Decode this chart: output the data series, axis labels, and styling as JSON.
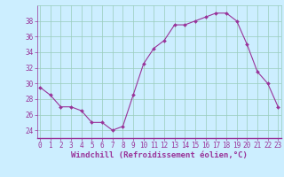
{
  "x": [
    0,
    1,
    2,
    3,
    4,
    5,
    6,
    7,
    8,
    9,
    10,
    11,
    12,
    13,
    14,
    15,
    16,
    17,
    18,
    19,
    20,
    21,
    22,
    23
  ],
  "y": [
    29.5,
    28.5,
    27.0,
    27.0,
    26.5,
    25.0,
    25.0,
    24.0,
    24.5,
    28.5,
    32.5,
    34.5,
    35.5,
    37.5,
    37.5,
    38.0,
    38.5,
    39.0,
    39.0,
    38.0,
    35.0,
    31.5,
    30.0,
    27.0
  ],
  "line_color": "#993399",
  "marker": "D",
  "markersize": 2.0,
  "linewidth": 0.8,
  "xlabel": "Windchill (Refroidissement éolien,°C)",
  "xlabel_fontsize": 6.5,
  "yticks": [
    24,
    26,
    28,
    30,
    32,
    34,
    36,
    38
  ],
  "xticks": [
    0,
    1,
    2,
    3,
    4,
    5,
    6,
    7,
    8,
    9,
    10,
    11,
    12,
    13,
    14,
    15,
    16,
    17,
    18,
    19,
    20,
    21,
    22,
    23
  ],
  "ylim": [
    23.0,
    40.0
  ],
  "xlim": [
    -0.3,
    23.3
  ],
  "bg_color": "#cceeff",
  "plot_bg_color": "#cceeff",
  "grid_color": "#99ccbb",
  "tick_fontsize": 5.5,
  "tick_color": "#993399",
  "label_color": "#993399",
  "spine_color": "#993399",
  "bottom_bar_color": "#993399"
}
